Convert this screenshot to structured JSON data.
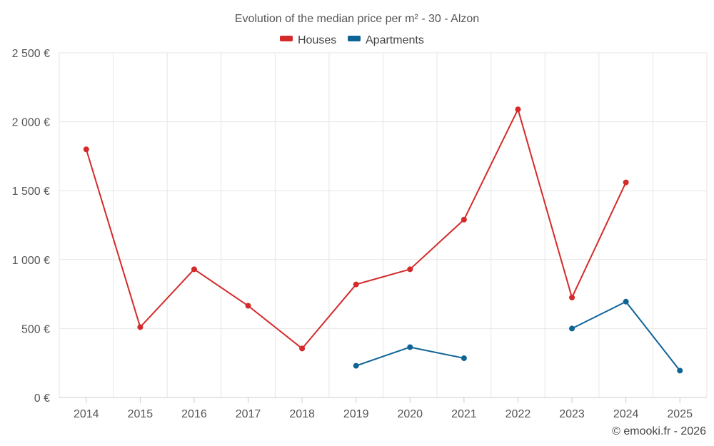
{
  "chart_data": {
    "type": "line",
    "title": "Evolution of the median price per m² - 30 - Alzon",
    "categories": [
      "2014",
      "2015",
      "2016",
      "2017",
      "2018",
      "2019",
      "2020",
      "2021",
      "2022",
      "2023",
      "2024",
      "2025"
    ],
    "ylim": [
      0,
      2500
    ],
    "yticks": [
      0,
      500,
      1000,
      1500,
      2000,
      2500
    ],
    "ytick_labels": [
      "0 €",
      "500 €",
      "1 000 €",
      "1 500 €",
      "2 000 €",
      "2 500 €"
    ],
    "grid": true,
    "legend_position": "top-center",
    "series": [
      {
        "name": "Houses",
        "color": "#d42a2a",
        "values": [
          1800,
          510,
          930,
          665,
          355,
          820,
          930,
          1290,
          2090,
          725,
          1560,
          null
        ]
      },
      {
        "name": "Apartments",
        "color": "#0f6496",
        "values": [
          null,
          null,
          null,
          null,
          null,
          230,
          365,
          285,
          null,
          500,
          695,
          195
        ]
      }
    ]
  },
  "credit": "© emooki.fr - 2026"
}
